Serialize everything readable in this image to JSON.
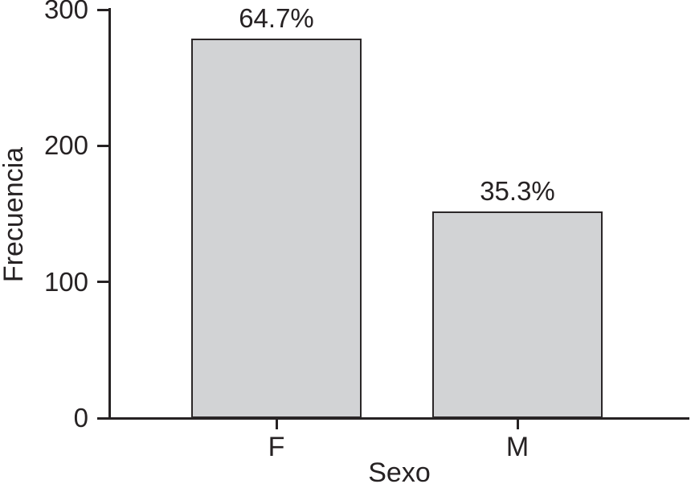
{
  "chart_data": {
    "type": "bar",
    "title": "",
    "categories": [
      "F",
      "M"
    ],
    "values": [
      279,
      152
    ],
    "bar_labels": [
      "64.7%",
      "35.3%"
    ],
    "xlabel": "Sexo",
    "ylabel": "Frecuencia",
    "ylim": [
      0,
      300
    ],
    "yticks": [
      0,
      100,
      200,
      300
    ],
    "grid": false,
    "legend_position": "none",
    "colors": {
      "bar_fill": "#d2d3d5",
      "bar_border": "#2b2728",
      "axis": "#262223",
      "text": "#262223",
      "background": "#ffffff"
    }
  }
}
